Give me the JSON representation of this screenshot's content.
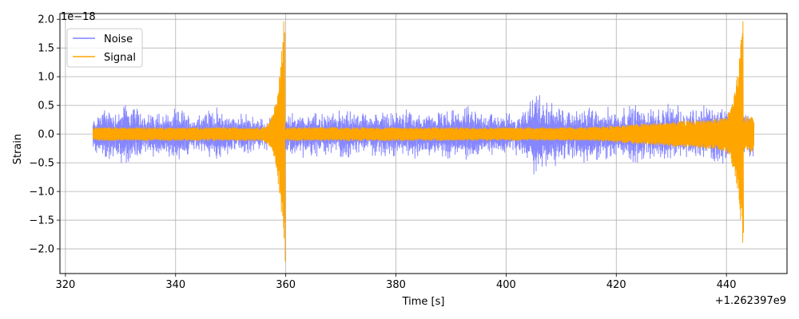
{
  "chart_data": {
    "type": "line",
    "title": "",
    "xlabel": "Time [s]",
    "ylabel": "Strain",
    "x_offset_label": "+1.262397e9",
    "y_scale_label": "1e−18",
    "xlim": [
      319,
      451
    ],
    "ylim": [
      -2.43,
      2.1
    ],
    "x_ticks": [
      320,
      340,
      360,
      380,
      400,
      420,
      440
    ],
    "x_tick_labels": [
      "320",
      "340",
      "360",
      "380",
      "400",
      "420",
      "440"
    ],
    "y_ticks": [
      -2.0,
      -1.5,
      -1.0,
      -0.5,
      0.0,
      0.5,
      1.0,
      1.5,
      2.0
    ],
    "y_tick_labels": [
      "−2.0",
      "−1.5",
      "−1.0",
      "−0.5",
      "0.0",
      "0.5",
      "1.0",
      "1.5",
      "2.0"
    ],
    "grid": true,
    "legend_position": "top-left",
    "series": [
      {
        "name": "Noise",
        "color": "#8080ff",
        "x_range": [
          325,
          445
        ],
        "envelope": {
          "x": [
            325,
            327,
            329,
            331,
            333,
            335,
            337,
            339,
            341,
            343,
            345,
            347,
            349,
            351,
            353,
            355,
            357,
            359,
            361,
            363,
            365,
            367,
            369,
            371,
            373,
            375,
            377,
            379,
            381,
            383,
            385,
            387,
            389,
            391,
            393,
            395,
            397,
            399,
            401,
            403,
            405,
            407,
            409,
            411,
            413,
            415,
            417,
            419,
            421,
            423,
            425,
            427,
            429,
            431,
            433,
            435,
            437,
            439,
            441,
            443,
            445
          ],
          "amp": [
            0.28,
            0.55,
            0.45,
            0.62,
            0.5,
            0.4,
            0.45,
            0.42,
            0.5,
            0.35,
            0.45,
            0.5,
            0.42,
            0.35,
            0.4,
            0.3,
            0.32,
            0.3,
            0.4,
            0.45,
            0.42,
            0.4,
            0.42,
            0.48,
            0.42,
            0.4,
            0.45,
            0.42,
            0.45,
            0.45,
            0.4,
            0.42,
            0.45,
            0.45,
            0.52,
            0.45,
            0.42,
            0.4,
            0.4,
            0.42,
            0.9,
            0.62,
            0.6,
            0.45,
            0.5,
            0.55,
            0.5,
            0.5,
            0.5,
            0.6,
            0.5,
            0.5,
            0.55,
            0.52,
            0.5,
            0.55,
            0.55,
            0.58,
            0.5,
            0.45,
            0.4
          ]
        }
      },
      {
        "name": "Signal",
        "color": "#ffa500",
        "x_range": [
          325,
          445
        ],
        "baseline_amp": 0.12,
        "events": [
          {
            "time": 359.8,
            "peak_max": 1.77,
            "peak_min": -2.22
          },
          {
            "time": 443.0,
            "peak_max": 1.86,
            "peak_min": -1.72
          }
        ]
      }
    ]
  }
}
